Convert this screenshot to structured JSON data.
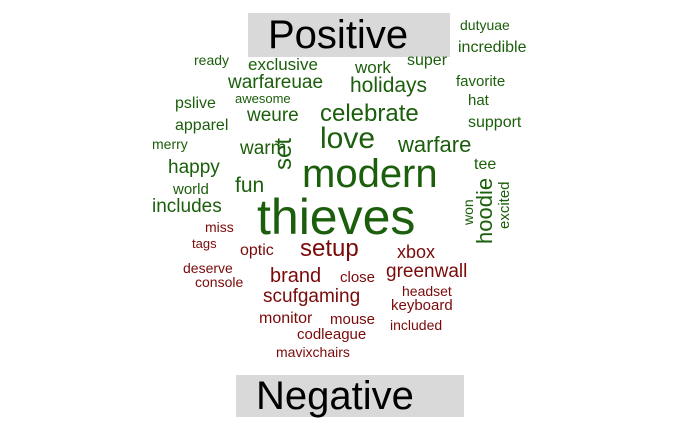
{
  "chart_data": {
    "type": "comparison word cloud",
    "groups": [
      {
        "name": "Positive",
        "color": "#1b5e0b",
        "words": [
          "thieves",
          "modern",
          "love",
          "celebrate",
          "warfare",
          "set",
          "holidays",
          "warfareuae",
          "weure",
          "warm",
          "fun",
          "happy",
          "includes",
          "exclusive",
          "work",
          "super",
          "incredible",
          "dutyuae",
          "ready",
          "favorite",
          "hat",
          "support",
          "awesome",
          "pslive",
          "apparel",
          "merry",
          "world",
          "tee",
          "hoodie",
          "excited",
          "won"
        ]
      },
      {
        "name": "Negative",
        "color": "#7a0a0a",
        "words": [
          "setup",
          "brand",
          "greenwall",
          "xbox",
          "scufgaming",
          "optic",
          "miss",
          "tags",
          "deserve",
          "console",
          "close",
          "headset",
          "keyboard",
          "monitor",
          "mouse",
          "included",
          "codleague",
          "mavixchairs"
        ]
      }
    ]
  }
}
